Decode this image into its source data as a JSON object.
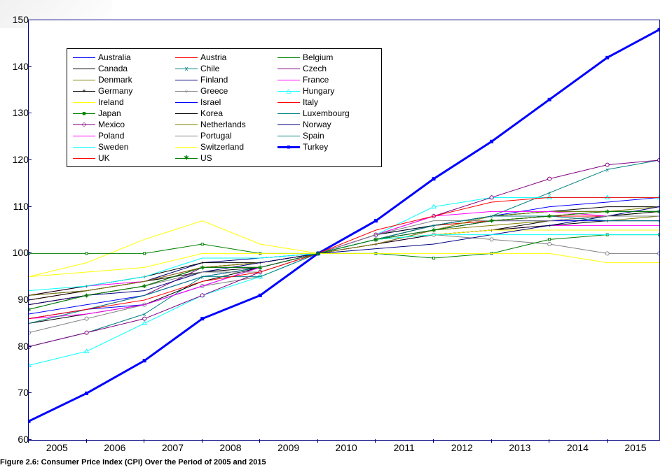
{
  "caption": "Figure 2.6: Consumer Price Index (CPI) Over the Period of 2005 and 2015",
  "chart": {
    "type": "line",
    "background_color": "#ffffff",
    "border_color": "#000080",
    "ylim": [
      60,
      150
    ],
    "ytick_step": 10,
    "xlim": [
      2005,
      2015.9
    ],
    "xticks": [
      2005,
      2006,
      2007,
      2008,
      2009,
      2010,
      2011,
      2012,
      2013,
      2014,
      2015
    ],
    "axis_fontsize": 14,
    "legend_fontsize": 12,
    "legend_position": "upper-left",
    "legend_border_color": "#000000",
    "series": [
      {
        "label": "Australia",
        "color": "#0000ff",
        "marker": "",
        "lw": 1,
        "x": [
          2005,
          2006,
          2007,
          2008,
          2009,
          2010,
          2011,
          2012,
          2013,
          2014,
          2015,
          2015.9
        ],
        "y": [
          87,
          89,
          91,
          95,
          97,
          100,
          104,
          106,
          108,
          110,
          111,
          112
        ]
      },
      {
        "label": "Austria",
        "color": "#ff0000",
        "marker": "",
        "lw": 1,
        "x": [
          2005,
          2006,
          2007,
          2008,
          2009,
          2010,
          2011,
          2012,
          2013,
          2014,
          2015,
          2015.9
        ],
        "y": [
          90,
          92,
          94,
          97,
          98,
          100,
          103,
          105,
          107,
          108,
          109,
          109
        ]
      },
      {
        "label": "Belgium",
        "color": "#008000",
        "marker": "",
        "lw": 1,
        "x": [
          2005,
          2006,
          2007,
          2008,
          2009,
          2010,
          2011,
          2012,
          2013,
          2014,
          2015,
          2015.9
        ],
        "y": [
          89,
          91,
          93,
          97,
          97,
          100,
          103,
          106,
          107,
          108,
          108,
          109
        ]
      },
      {
        "label": "Canada",
        "color": "#000000",
        "marker": "",
        "lw": 1,
        "x": [
          2005,
          2006,
          2007,
          2008,
          2009,
          2010,
          2011,
          2012,
          2013,
          2014,
          2015,
          2015.9
        ],
        "y": [
          90,
          92,
          94,
          96,
          97,
          100,
          103,
          104,
          105,
          107,
          108,
          109
        ]
      },
      {
        "label": "Chile",
        "color": "#008080",
        "marker": "x",
        "lw": 1,
        "x": [
          2005,
          2006,
          2007,
          2008,
          2009,
          2010,
          2011,
          2012,
          2013,
          2014,
          2015,
          2015.9
        ],
        "y": [
          80,
          83,
          87,
          95,
          97,
          100,
          103,
          106,
          108,
          113,
          118,
          120
        ]
      },
      {
        "label": "Czech",
        "color": "#800080",
        "marker": "",
        "lw": 1,
        "x": [
          2005,
          2006,
          2007,
          2008,
          2009,
          2010,
          2011,
          2012,
          2013,
          2014,
          2015,
          2015.9
        ],
        "y": [
          86,
          88,
          91,
          97,
          98,
          100,
          102,
          105,
          107,
          108,
          108,
          108
        ]
      },
      {
        "label": "Denmark",
        "color": "#808000",
        "marker": "",
        "lw": 1,
        "x": [
          2005,
          2006,
          2007,
          2008,
          2009,
          2010,
          2011,
          2012,
          2013,
          2014,
          2015,
          2015.9
        ],
        "y": [
          89,
          91,
          93,
          97,
          98,
          100,
          103,
          105,
          106,
          107,
          107,
          108
        ]
      },
      {
        "label": "Finland",
        "color": "#000080",
        "marker": "",
        "lw": 1,
        "x": [
          2005,
          2006,
          2007,
          2008,
          2009,
          2010,
          2011,
          2012,
          2013,
          2014,
          2015,
          2015.9
        ],
        "y": [
          91,
          92,
          94,
          98,
          99,
          100,
          103,
          106,
          108,
          109,
          109,
          109
        ]
      },
      {
        "label": "France",
        "color": "#ff00ff",
        "marker": "",
        "lw": 1,
        "x": [
          2005,
          2006,
          2007,
          2008,
          2009,
          2010,
          2011,
          2012,
          2013,
          2014,
          2015,
          2015.9
        ],
        "y": [
          91,
          93,
          94,
          97,
          97,
          100,
          102,
          104,
          105,
          106,
          106,
          106
        ]
      },
      {
        "label": "Germany",
        "color": "#000000",
        "marker": "+",
        "lw": 1,
        "x": [
          2005,
          2006,
          2007,
          2008,
          2009,
          2010,
          2011,
          2012,
          2013,
          2014,
          2015,
          2015.9
        ],
        "y": [
          91,
          93,
          95,
          98,
          98,
          100,
          102,
          104,
          105,
          106,
          107,
          107
        ]
      },
      {
        "label": "Greece",
        "color": "#808080",
        "marker": "o",
        "lw": 1,
        "x": [
          2005,
          2006,
          2007,
          2008,
          2009,
          2010,
          2011,
          2012,
          2013,
          2014,
          2015,
          2015.9
        ],
        "y": [
          83,
          86,
          89,
          93,
          95,
          100,
          103,
          104,
          103,
          102,
          100,
          100
        ]
      },
      {
        "label": "Hungary",
        "color": "#00ffff",
        "marker": "^",
        "lw": 1,
        "x": [
          2005,
          2006,
          2007,
          2008,
          2009,
          2010,
          2011,
          2012,
          2013,
          2014,
          2015,
          2015.9
        ],
        "y": [
          76,
          79,
          85,
          91,
          95,
          100,
          104,
          110,
          112,
          112,
          112,
          112
        ]
      },
      {
        "label": "Ireland",
        "color": "#ffff00",
        "marker": "",
        "lw": 1,
        "x": [
          2005,
          2006,
          2007,
          2008,
          2009,
          2010,
          2011,
          2012,
          2013,
          2014,
          2015,
          2015.9
        ],
        "y": [
          95,
          98,
          103,
          107,
          102,
          100,
          103,
          104,
          105,
          105,
          105,
          105
        ]
      },
      {
        "label": "Israel",
        "color": "#0000ff",
        "marker": "",
        "lw": 1,
        "x": [
          2005,
          2006,
          2007,
          2008,
          2009,
          2010,
          2011,
          2012,
          2013,
          2014,
          2015,
          2015.9
        ],
        "y": [
          86,
          88,
          89,
          93,
          97,
          100,
          103,
          105,
          107,
          107,
          107,
          107
        ]
      },
      {
        "label": "Italy",
        "color": "#ff0000",
        "marker": "",
        "lw": 1,
        "x": [
          2005,
          2006,
          2007,
          2008,
          2009,
          2010,
          2011,
          2012,
          2013,
          2014,
          2015,
          2015.9
        ],
        "y": [
          89,
          91,
          93,
          97,
          97,
          100,
          103,
          106,
          107,
          108,
          108,
          108
        ]
      },
      {
        "label": "Japan",
        "color": "#008000",
        "marker": "s",
        "lw": 1,
        "x": [
          2005,
          2006,
          2007,
          2008,
          2009,
          2010,
          2011,
          2012,
          2013,
          2014,
          2015,
          2015.9
        ],
        "y": [
          100,
          100,
          100,
          102,
          100,
          100,
          100,
          99,
          100,
          103,
          104,
          104
        ]
      },
      {
        "label": "Korea",
        "color": "#000000",
        "marker": "",
        "lw": 1,
        "x": [
          2005,
          2006,
          2007,
          2008,
          2009,
          2010,
          2011,
          2012,
          2013,
          2014,
          2015,
          2015.9
        ],
        "y": [
          85,
          87,
          89,
          94,
          97,
          100,
          104,
          106,
          108,
          109,
          110,
          110
        ]
      },
      {
        "label": "Luxembourg",
        "color": "#008080",
        "marker": "",
        "lw": 1,
        "x": [
          2005,
          2006,
          2007,
          2008,
          2009,
          2010,
          2011,
          2012,
          2013,
          2014,
          2015,
          2015.9
        ],
        "y": [
          88,
          91,
          93,
          97,
          97,
          100,
          103,
          106,
          108,
          109,
          109,
          109
        ]
      },
      {
        "label": "Mexico",
        "color": "#800080",
        "marker": "d",
        "lw": 1,
        "x": [
          2005,
          2006,
          2007,
          2008,
          2009,
          2010,
          2011,
          2012,
          2013,
          2014,
          2015,
          2015.9
        ],
        "y": [
          80,
          83,
          86,
          91,
          96,
          100,
          104,
          108,
          112,
          116,
          119,
          120
        ]
      },
      {
        "label": "Netherlands",
        "color": "#808000",
        "marker": "",
        "lw": 1,
        "x": [
          2005,
          2006,
          2007,
          2008,
          2009,
          2010,
          2011,
          2012,
          2013,
          2014,
          2015,
          2015.9
        ],
        "y": [
          91,
          92,
          94,
          97,
          98,
          100,
          102,
          105,
          108,
          109,
          109,
          110
        ]
      },
      {
        "label": "Norway",
        "color": "#000080",
        "marker": "",
        "lw": 1,
        "x": [
          2005,
          2006,
          2007,
          2008,
          2009,
          2010,
          2011,
          2012,
          2013,
          2014,
          2015,
          2015.9
        ],
        "y": [
          89,
          91,
          92,
          96,
          98,
          100,
          101,
          102,
          104,
          106,
          108,
          110
        ]
      },
      {
        "label": "Poland",
        "color": "#ff00ff",
        "marker": "",
        "lw": 1,
        "x": [
          2005,
          2006,
          2007,
          2008,
          2009,
          2010,
          2011,
          2012,
          2013,
          2014,
          2015,
          2015.9
        ],
        "y": [
          86,
          87,
          89,
          93,
          97,
          100,
          104,
          108,
          109,
          109,
          108,
          108
        ]
      },
      {
        "label": "Portugal",
        "color": "#808080",
        "marker": "",
        "lw": 1,
        "x": [
          2005,
          2006,
          2007,
          2008,
          2009,
          2010,
          2011,
          2012,
          2013,
          2014,
          2015,
          2015.9
        ],
        "y": [
          88,
          91,
          93,
          96,
          96,
          100,
          104,
          107,
          107,
          107,
          108,
          108
        ]
      },
      {
        "label": "Spain",
        "color": "#008080",
        "marker": "",
        "lw": 1,
        "x": [
          2005,
          2006,
          2007,
          2008,
          2009,
          2010,
          2011,
          2012,
          2013,
          2014,
          2015,
          2015.9
        ],
        "y": [
          85,
          88,
          91,
          95,
          95,
          100,
          103,
          106,
          108,
          108,
          107,
          107
        ]
      },
      {
        "label": "Sweden",
        "color": "#00ffff",
        "marker": "",
        "lw": 1,
        "x": [
          2005,
          2006,
          2007,
          2008,
          2009,
          2010,
          2011,
          2012,
          2013,
          2014,
          2015,
          2015.9
        ],
        "y": [
          92,
          93,
          95,
          99,
          99,
          100,
          103,
          104,
          104,
          104,
          104,
          104
        ]
      },
      {
        "label": "Switzerland",
        "color": "#ffff00",
        "marker": "",
        "lw": 1,
        "x": [
          2005,
          2006,
          2007,
          2008,
          2009,
          2010,
          2011,
          2012,
          2013,
          2014,
          2015,
          2015.9
        ],
        "y": [
          95,
          96,
          97,
          100,
          100,
          100,
          100,
          100,
          100,
          100,
          98,
          98
        ]
      },
      {
        "label": "Turkey",
        "color": "#0000ff",
        "marker": "S",
        "lw": 3,
        "x": [
          2005,
          2006,
          2007,
          2008,
          2009,
          2010,
          2011,
          2012,
          2013,
          2014,
          2015,
          2015.9
        ],
        "y": [
          64,
          70,
          77,
          86,
          91,
          100,
          107,
          116,
          124,
          133,
          142,
          148
        ]
      },
      {
        "label": "UK",
        "color": "#ff0000",
        "marker": "",
        "lw": 1,
        "x": [
          2005,
          2006,
          2007,
          2008,
          2009,
          2010,
          2011,
          2012,
          2013,
          2014,
          2015,
          2015.9
        ],
        "y": [
          86,
          88,
          90,
          94,
          96,
          100,
          105,
          108,
          111,
          112,
          112,
          112
        ]
      },
      {
        "label": "US",
        "color": "#008000",
        "marker": "*",
        "lw": 1,
        "x": [
          2005,
          2006,
          2007,
          2008,
          2009,
          2010,
          2011,
          2012,
          2013,
          2014,
          2015,
          2015.9
        ],
        "y": [
          88,
          91,
          93,
          97,
          97,
          100,
          103,
          105,
          107,
          108,
          109,
          109
        ]
      }
    ]
  }
}
